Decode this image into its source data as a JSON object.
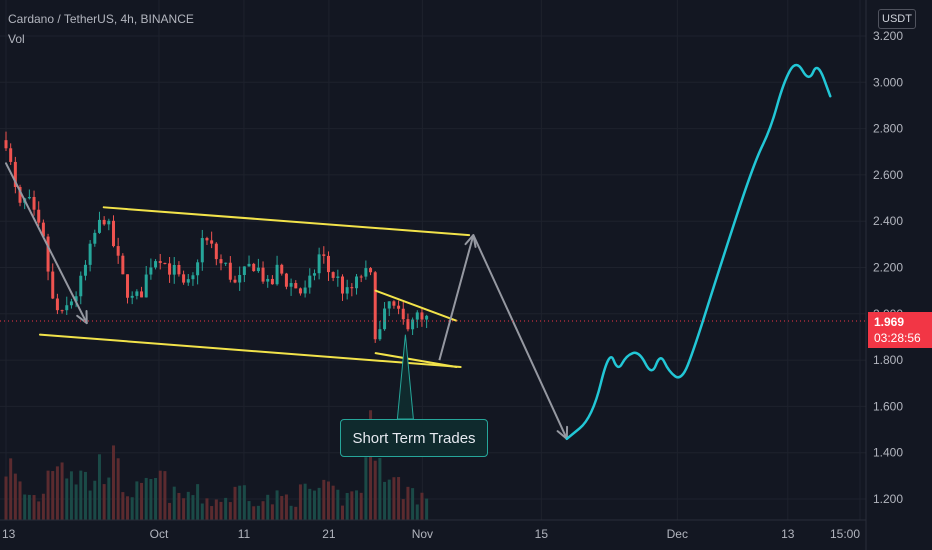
{
  "header": {
    "title": "Cardano / TetherUS, 4h, BINANCE",
    "volume_label": "Vol"
  },
  "currency_button": "USDT",
  "price_tag": {
    "price": "1.969",
    "countdown": "03:28:56"
  },
  "annotation": {
    "text": "Short Term Trades"
  },
  "colors": {
    "background": "#131722",
    "up": "#26a69a",
    "down": "#ef5350",
    "trendline": "#f2e34a",
    "arrow": "#9598a1",
    "projection": "#22c7d6",
    "price_line": "#f23645"
  },
  "chart_data": {
    "type": "candlestick",
    "symbol": "Cardano / TetherUS",
    "timeframe": "4h",
    "exchange": "BINANCE",
    "ylim": [
      1.1,
      3.3
    ],
    "y_ticks": [
      1.2,
      1.4,
      1.6,
      1.8,
      2.0,
      2.2,
      2.4,
      2.6,
      2.8,
      3.0,
      3.2
    ],
    "y_tick_labels": [
      "1.200",
      "1.400",
      "1.600",
      "1.800",
      "2.000",
      "2.200",
      "2.400",
      "2.600",
      "2.800",
      "3.000",
      "3.200"
    ],
    "x_ticks": [
      {
        "label": "13",
        "day": 13
      },
      {
        "label": "Oct",
        "day": 31
      },
      {
        "label": "11",
        "day": 41
      },
      {
        "label": "21",
        "day": 51
      },
      {
        "label": "Nov",
        "day": 62
      },
      {
        "label": "15",
        "day": 76
      },
      {
        "label": "Dec",
        "day": 92
      },
      {
        "label": "13",
        "day": 105
      },
      {
        "label": "15:00",
        "day": 113.5
      }
    ],
    "x_unit": "days since Sep 1",
    "last_price": 1.969,
    "price_path": [
      [
        13.0,
        2.75
      ],
      [
        14.5,
        2.45
      ],
      [
        15.5,
        2.5
      ],
      [
        16.5,
        2.4
      ],
      [
        17.5,
        2.3
      ],
      [
        18.5,
        2.05
      ],
      [
        19.5,
        1.98
      ],
      [
        20.5,
        2.05
      ],
      [
        21.5,
        2.1
      ],
      [
        22.5,
        2.22
      ],
      [
        23.5,
        2.35
      ],
      [
        24.5,
        2.42
      ],
      [
        25.0,
        2.38
      ],
      [
        26.0,
        2.25
      ],
      [
        27.0,
        2.12
      ],
      [
        28.0,
        2.05
      ],
      [
        29.0,
        2.1
      ],
      [
        30.0,
        2.22
      ],
      [
        31.0,
        2.26
      ],
      [
        32.0,
        2.2
      ],
      [
        33.0,
        2.18
      ],
      [
        34.0,
        2.1
      ],
      [
        35.0,
        2.15
      ],
      [
        36.0,
        2.32
      ],
      [
        37.0,
        2.3
      ],
      [
        38.0,
        2.22
      ],
      [
        39.0,
        2.2
      ],
      [
        40.0,
        2.12
      ],
      [
        41.0,
        2.17
      ],
      [
        42.0,
        2.22
      ],
      [
        43.0,
        2.18
      ],
      [
        44.0,
        2.1
      ],
      [
        45.0,
        2.2
      ],
      [
        46.0,
        2.14
      ],
      [
        47.0,
        2.12
      ],
      [
        48.0,
        2.08
      ],
      [
        49.0,
        2.15
      ],
      [
        50.0,
        2.27
      ],
      [
        51.0,
        2.18
      ],
      [
        52.0,
        2.15
      ],
      [
        53.0,
        2.08
      ],
      [
        54.0,
        2.12
      ],
      [
        55.0,
        2.18
      ],
      [
        56.0,
        2.15
      ],
      [
        56.5,
        1.9
      ],
      [
        57.0,
        1.92
      ],
      [
        58.0,
        2.05
      ],
      [
        59.0,
        2.0
      ],
      [
        60.0,
        1.95
      ],
      [
        61.0,
        2.0
      ],
      [
        62.0,
        1.96
      ],
      [
        62.5,
        1.97
      ],
      [
        63.0,
        1.98
      ]
    ],
    "volume_path": [
      [
        13.0,
        0.55
      ],
      [
        15.0,
        0.25
      ],
      [
        17.0,
        0.2
      ],
      [
        19.0,
        0.7
      ],
      [
        21.0,
        0.45
      ],
      [
        23.0,
        0.35
      ],
      [
        25.0,
        0.6
      ],
      [
        27.0,
        0.3
      ],
      [
        29.0,
        0.25
      ],
      [
        31.0,
        0.4
      ],
      [
        33.0,
        0.2
      ],
      [
        35.0,
        0.25
      ],
      [
        37.0,
        0.18
      ],
      [
        39.0,
        0.2
      ],
      [
        41.0,
        0.3
      ],
      [
        43.0,
        0.18
      ],
      [
        45.0,
        0.2
      ],
      [
        47.0,
        0.22
      ],
      [
        49.0,
        0.28
      ],
      [
        51.0,
        0.25
      ],
      [
        53.0,
        0.2
      ],
      [
        55.0,
        0.35
      ],
      [
        56.5,
        1.0
      ],
      [
        58.0,
        0.35
      ],
      [
        60.0,
        0.3
      ],
      [
        62.0,
        0.22
      ],
      [
        63.0,
        0.18
      ]
    ],
    "drawings": {
      "channel_upper": [
        [
          24.5,
          2.46
        ],
        [
          67.5,
          2.34
        ]
      ],
      "channel_lower": [
        [
          17.0,
          1.91
        ],
        [
          66.5,
          1.77
        ]
      ],
      "wedge_upper": [
        [
          56.5,
          2.1
        ],
        [
          66.0,
          1.97
        ]
      ],
      "wedge_lower": [
        [
          56.5,
          1.83
        ],
        [
          66.0,
          1.77
        ]
      ],
      "arrow_down_left": [
        [
          13.0,
          2.65
        ],
        [
          22.5,
          1.96
        ]
      ],
      "arrow_zigzag": [
        [
          64.0,
          1.8
        ],
        [
          68.0,
          2.34
        ],
        [
          79.0,
          1.46
        ]
      ],
      "projection_path": [
        [
          79.0,
          1.46
        ],
        [
          82.0,
          1.55
        ],
        [
          84.0,
          1.85
        ],
        [
          85.0,
          1.75
        ],
        [
          86.0,
          1.82
        ],
        [
          87.5,
          1.84
        ],
        [
          89.0,
          1.73
        ],
        [
          90.0,
          1.83
        ],
        [
          91.0,
          1.75
        ],
        [
          92.5,
          1.71
        ],
        [
          94.0,
          1.85
        ],
        [
          97.0,
          2.2
        ],
        [
          101.0,
          2.65
        ],
        [
          103.0,
          2.8
        ],
        [
          104.5,
          3.0
        ],
        [
          106.0,
          3.1
        ],
        [
          107.5,
          3.0
        ],
        [
          108.5,
          3.09
        ],
        [
          110.0,
          2.94
        ]
      ]
    },
    "annotation": {
      "text": "Short Term Trades",
      "anchor": [
        60.0,
        1.91
      ]
    }
  }
}
